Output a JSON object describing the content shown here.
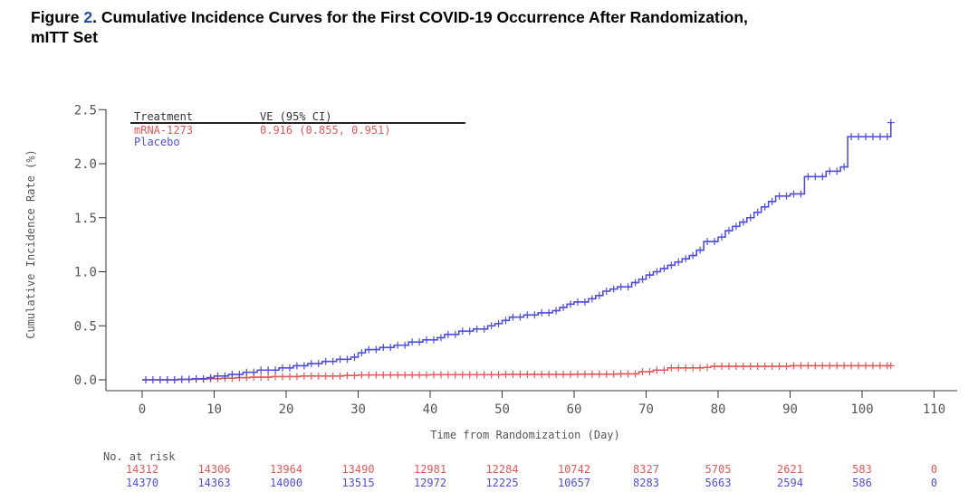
{
  "figure": {
    "label": "Figure",
    "number": "2",
    "title_line1": ". Cumulative Incidence Curves for the First COVID-19 Occurrence After Randomization,",
    "title_line2": "mITT Set"
  },
  "chart_data": {
    "type": "line",
    "step": true,
    "xlabel": "Time from Randomization (Day)",
    "ylabel": "Cumulative Incidence Rate (%)",
    "xlim": [
      -5,
      112
    ],
    "ylim": [
      0,
      2.5
    ],
    "x_ticks": [
      0,
      10,
      20,
      30,
      40,
      50,
      60,
      70,
      80,
      90,
      100,
      110
    ],
    "y_ticks": [
      0.0,
      0.5,
      1.0,
      1.5,
      2.0,
      2.5
    ],
    "x_tick_labels": [
      "0",
      "10",
      "20",
      "30",
      "40",
      "50",
      "60",
      "70",
      "80",
      "90",
      "100",
      "110"
    ],
    "y_tick_labels": [
      "0.0",
      "0.5",
      "1.0",
      "1.5",
      "2.0",
      "2.5"
    ],
    "legend": {
      "position": "top-left",
      "header_treatment": "Treatment",
      "header_ve": "VE (95% CI)",
      "entries": [
        {
          "name": "mRNA-1273",
          "ve": "0.916 (0.855, 0.951)"
        },
        {
          "name": "Placebo",
          "ve": ""
        }
      ]
    },
    "series": [
      {
        "name": "mRNA-1273",
        "color": "#e05a5a",
        "x": [
          0,
          5,
          7,
          9,
          11,
          13,
          15,
          18,
          22,
          28,
          30,
          40,
          50,
          60,
          66,
          69,
          71,
          73,
          78,
          79,
          85,
          90,
          100,
          104
        ],
        "y": [
          0,
          0.003,
          0.006,
          0.01,
          0.015,
          0.02,
          0.025,
          0.03,
          0.035,
          0.04,
          0.045,
          0.047,
          0.05,
          0.052,
          0.055,
          0.075,
          0.09,
          0.11,
          0.115,
          0.125,
          0.125,
          0.13,
          0.13,
          0.13
        ]
      },
      {
        "name": "Placebo",
        "color": "#4f4fd9",
        "x": [
          0,
          5,
          7,
          9,
          10,
          12,
          14,
          16,
          19,
          21,
          23,
          25,
          27,
          29,
          30,
          31,
          33,
          35,
          37,
          39,
          41,
          42,
          44,
          46,
          48,
          49,
          50,
          51,
          53,
          55,
          57,
          58,
          59,
          60,
          62,
          63,
          64,
          65,
          66,
          68,
          69,
          70,
          71,
          72,
          73,
          74,
          75,
          76,
          77,
          78,
          80,
          81,
          82,
          83,
          84,
          85,
          86,
          87,
          88,
          90,
          92,
          95,
          97,
          98,
          104
        ],
        "y": [
          0,
          0.005,
          0.01,
          0.02,
          0.035,
          0.05,
          0.07,
          0.09,
          0.11,
          0.13,
          0.15,
          0.17,
          0.19,
          0.21,
          0.25,
          0.28,
          0.3,
          0.32,
          0.35,
          0.37,
          0.39,
          0.42,
          0.45,
          0.47,
          0.5,
          0.52,
          0.55,
          0.58,
          0.6,
          0.62,
          0.64,
          0.67,
          0.7,
          0.72,
          0.75,
          0.78,
          0.82,
          0.84,
          0.86,
          0.9,
          0.93,
          0.97,
          1.0,
          1.03,
          1.06,
          1.09,
          1.12,
          1.15,
          1.2,
          1.28,
          1.32,
          1.38,
          1.42,
          1.46,
          1.5,
          1.55,
          1.6,
          1.65,
          1.7,
          1.72,
          1.88,
          1.93,
          1.97,
          2.25,
          2.38
        ]
      }
    ],
    "at_risk": {
      "label": "No. at risk",
      "days": [
        0,
        10,
        20,
        30,
        40,
        50,
        60,
        70,
        80,
        90,
        100,
        110
      ],
      "rows": [
        {
          "name": "mRNA-1273",
          "color": "#e05a5a",
          "values": [
            "14312",
            "14306",
            "13964",
            "13490",
            "12981",
            "12284",
            "10742",
            "8327",
            "5705",
            "2621",
            "583",
            "0"
          ]
        },
        {
          "name": "Placebo",
          "color": "#4f4fd9",
          "values": [
            "14370",
            "14363",
            "14000",
            "13515",
            "12972",
            "12225",
            "10657",
            "8283",
            "5663",
            "2594",
            "586",
            "0"
          ]
        }
      ]
    }
  }
}
